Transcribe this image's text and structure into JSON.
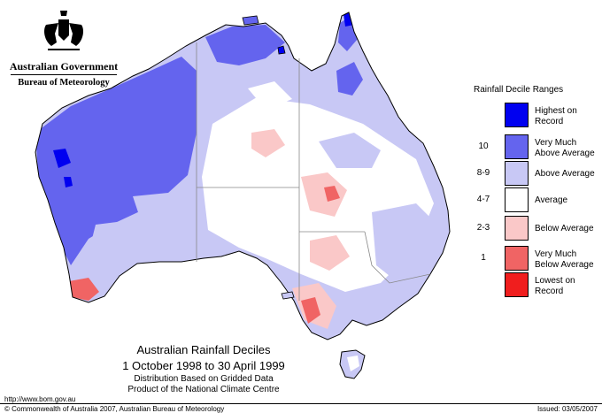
{
  "colors": {
    "highest": "#0000f0",
    "very_much_above": "#6464ee",
    "above": "#c8c8f5",
    "average": "#ffffff",
    "below": "#fac8c8",
    "very_much_below": "#f06464",
    "lowest": "#f01e1e",
    "outline": "#000000"
  },
  "logo": {
    "government": "Australian Government",
    "bureau": "Bureau of Meteorology",
    "crest_icon": "coat-of-arms-icon"
  },
  "legend": {
    "title": "Rainfall Decile Ranges",
    "items": [
      {
        "range": "",
        "label_1": "Highest on",
        "label_2": "Record",
        "color": "#0000f0"
      },
      {
        "range": "10",
        "label_1": "Very Much",
        "label_2": "Above Average",
        "color": "#6464ee"
      },
      {
        "range": "8-9",
        "label_1": "Above Average",
        "label_2": "",
        "color": "#c8c8f5"
      },
      {
        "range": "4-7",
        "label_1": "Average",
        "label_2": "",
        "color": "#ffffff"
      },
      {
        "range": "2-3",
        "label_1": "Below Average",
        "label_2": "",
        "color": "#fac8c8"
      },
      {
        "range": "1",
        "label_1": "Very Much",
        "label_2": "Below Average",
        "color": "#f06464"
      },
      {
        "range": "",
        "label_1": "Lowest on",
        "label_2": "Record",
        "color": "#f01e1e"
      }
    ]
  },
  "caption": {
    "title": "Australian Rainfall Deciles",
    "period": "1 October 1998 to 30 April 1999",
    "line3": "Distribution Based on Gridded Data",
    "line4": "Product of the National Climate Centre"
  },
  "footer": {
    "url": "http://www.bom.gov.au",
    "copyright": "© Commonwealth of Australia 2007, Australian Bureau of Meteorology",
    "issued": "Issued: 03/05/2007"
  }
}
